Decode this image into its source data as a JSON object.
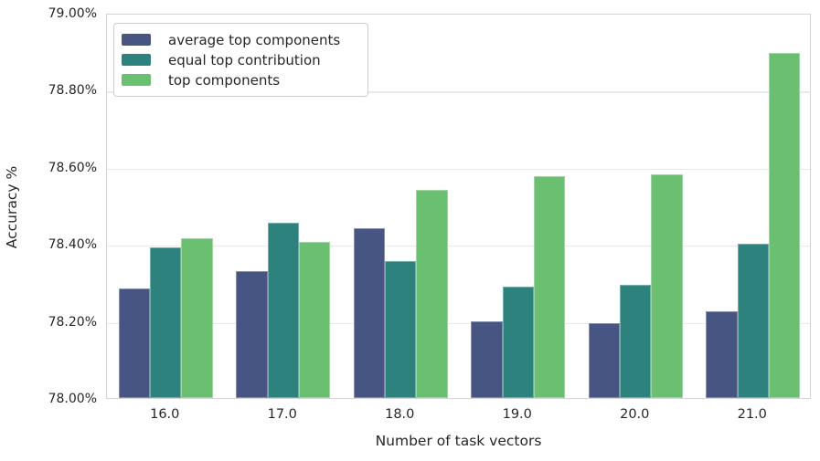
{
  "figure": {
    "background": "#ffffff",
    "text_color": "#262626"
  },
  "chart_data": {
    "type": "bar",
    "title": "",
    "xlabel": "Number of task vectors",
    "ylabel": "Accuracy %",
    "categories": [
      "16.0",
      "17.0",
      "18.0",
      "19.0",
      "20.0",
      "21.0"
    ],
    "series": [
      {
        "name": "average top components",
        "color": "#465581",
        "values": [
          78.285,
          78.33,
          78.44,
          78.2,
          78.195,
          78.225
        ]
      },
      {
        "name": "equal top contribution",
        "color": "#2e827e",
        "values": [
          78.39,
          78.455,
          78.355,
          78.29,
          78.295,
          78.4
        ]
      },
      {
        "name": "top components",
        "color": "#6bbf70",
        "values": [
          78.415,
          78.405,
          78.54,
          78.575,
          78.58,
          78.895
        ]
      }
    ],
    "ylim": [
      78.0,
      79.0
    ],
    "yticks": [
      {
        "value": 78.0,
        "label": "78.00%"
      },
      {
        "value": 78.2,
        "label": "78.20%"
      },
      {
        "value": 78.4,
        "label": "78.40%"
      },
      {
        "value": 78.6,
        "label": "78.60%"
      },
      {
        "value": 78.8,
        "label": "78.80%"
      },
      {
        "value": 79.0,
        "label": "79.00%"
      }
    ],
    "grid": true,
    "legend_position": "upper left"
  }
}
